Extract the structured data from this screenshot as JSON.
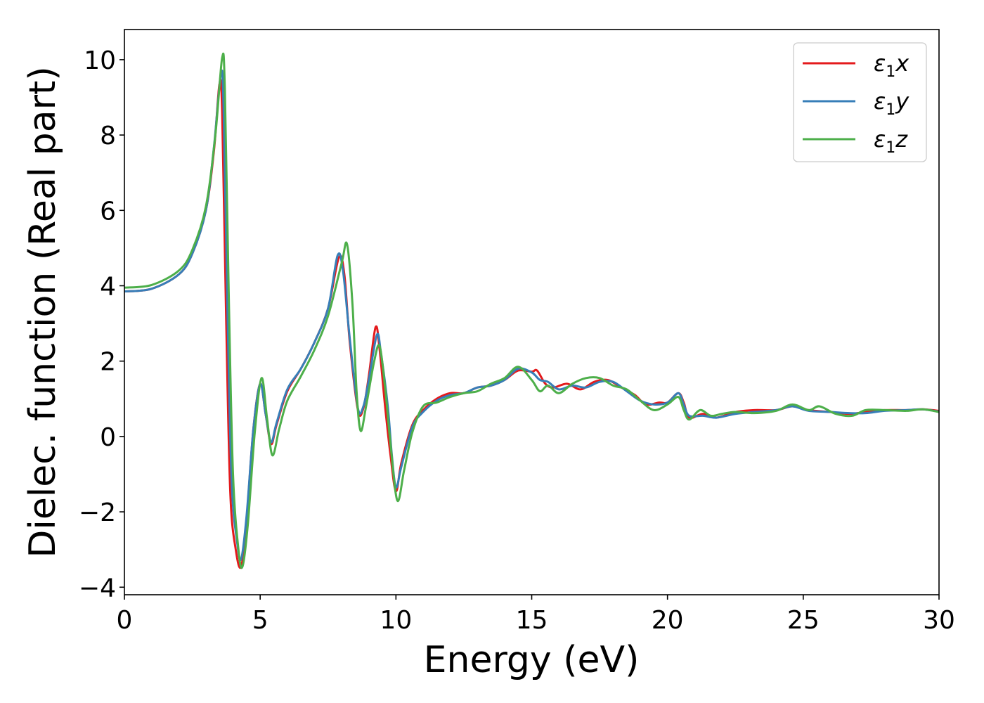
{
  "chart_data": {
    "type": "line",
    "title": "",
    "xlabel": "Energy (eV)",
    "ylabel": "Dielec. function (Real part)",
    "xlim": [
      0,
      30
    ],
    "ylim": [
      -4.2,
      10.8
    ],
    "xticks": [
      0,
      5,
      10,
      15,
      20,
      25,
      30
    ],
    "xtick_labels": [
      "0",
      "5",
      "10",
      "15",
      "20",
      "25",
      "30"
    ],
    "yticks": [
      -4,
      -2,
      0,
      2,
      4,
      6,
      8,
      10
    ],
    "ytick_labels": [
      "−4",
      "−2",
      "0",
      "2",
      "4",
      "6",
      "8",
      "10"
    ],
    "grid": false,
    "legend": {
      "position": "upper-right",
      "entries": [
        {
          "symbol": "ε",
          "sub": "1",
          "axis": "x"
        },
        {
          "symbol": "ε",
          "sub": "1",
          "axis": "y"
        },
        {
          "symbol": "ε",
          "sub": "1",
          "axis": "z"
        }
      ]
    },
    "series": [
      {
        "color": "#e41a1c",
        "points": [
          [
            0,
            3.85
          ],
          [
            1,
            3.92
          ],
          [
            2,
            4.3
          ],
          [
            2.5,
            4.85
          ],
          [
            3,
            6.0
          ],
          [
            3.3,
            7.6
          ],
          [
            3.5,
            9.35
          ],
          [
            3.6,
            8.6
          ],
          [
            3.75,
            3.0
          ],
          [
            3.9,
            -1.5
          ],
          [
            4.1,
            -3.0
          ],
          [
            4.3,
            -3.45
          ],
          [
            4.5,
            -2.2
          ],
          [
            4.75,
            0.2
          ],
          [
            5.0,
            1.4
          ],
          [
            5.2,
            0.6
          ],
          [
            5.4,
            -0.2
          ],
          [
            5.6,
            0.3
          ],
          [
            6.0,
            1.2
          ],
          [
            6.5,
            1.8
          ],
          [
            7.0,
            2.5
          ],
          [
            7.5,
            3.4
          ],
          [
            7.9,
            4.75
          ],
          [
            8.1,
            4.3
          ],
          [
            8.3,
            2.5
          ],
          [
            8.6,
            0.7
          ],
          [
            8.8,
            0.75
          ],
          [
            9.0,
            1.6
          ],
          [
            9.25,
            2.9
          ],
          [
            9.4,
            2.3
          ],
          [
            9.6,
            0.8
          ],
          [
            9.8,
            -0.5
          ],
          [
            10.0,
            -1.45
          ],
          [
            10.2,
            -0.7
          ],
          [
            10.6,
            0.3
          ],
          [
            11.0,
            0.7
          ],
          [
            11.5,
            1.0
          ],
          [
            12.0,
            1.15
          ],
          [
            12.5,
            1.15
          ],
          [
            13.0,
            1.3
          ],
          [
            13.5,
            1.35
          ],
          [
            14.0,
            1.5
          ],
          [
            14.5,
            1.75
          ],
          [
            15.0,
            1.72
          ],
          [
            15.2,
            1.75
          ],
          [
            15.5,
            1.4
          ],
          [
            15.8,
            1.3
          ],
          [
            16.3,
            1.4
          ],
          [
            16.8,
            1.25
          ],
          [
            17.3,
            1.45
          ],
          [
            17.8,
            1.5
          ],
          [
            18.3,
            1.3
          ],
          [
            18.8,
            1.1
          ],
          [
            19.2,
            0.85
          ],
          [
            19.7,
            0.9
          ],
          [
            20.0,
            0.9
          ],
          [
            20.4,
            1.15
          ],
          [
            20.6,
            0.9
          ],
          [
            20.8,
            0.5
          ],
          [
            21.3,
            0.6
          ],
          [
            21.8,
            0.5
          ],
          [
            22.5,
            0.65
          ],
          [
            23.2,
            0.7
          ],
          [
            24.0,
            0.7
          ],
          [
            24.6,
            0.8
          ],
          [
            25.2,
            0.7
          ],
          [
            26.0,
            0.65
          ],
          [
            26.7,
            0.6
          ],
          [
            27.3,
            0.65
          ],
          [
            28.0,
            0.7
          ],
          [
            28.8,
            0.7
          ],
          [
            29.4,
            0.72
          ],
          [
            30.0,
            0.68
          ]
        ]
      },
      {
        "color": "#377eb8",
        "points": [
          [
            0,
            3.85
          ],
          [
            1,
            3.92
          ],
          [
            2,
            4.3
          ],
          [
            2.5,
            4.85
          ],
          [
            3,
            6.0
          ],
          [
            3.3,
            7.7
          ],
          [
            3.55,
            9.6
          ],
          [
            3.65,
            8.8
          ],
          [
            3.8,
            3.2
          ],
          [
            3.95,
            -1.2
          ],
          [
            4.15,
            -2.8
          ],
          [
            4.3,
            -3.25
          ],
          [
            4.5,
            -2.1
          ],
          [
            4.75,
            0.2
          ],
          [
            5.0,
            1.4
          ],
          [
            5.2,
            0.6
          ],
          [
            5.4,
            -0.15
          ],
          [
            5.6,
            0.35
          ],
          [
            6.0,
            1.25
          ],
          [
            6.5,
            1.8
          ],
          [
            7.0,
            2.5
          ],
          [
            7.5,
            3.4
          ],
          [
            7.85,
            4.8
          ],
          [
            8.05,
            4.4
          ],
          [
            8.3,
            2.6
          ],
          [
            8.6,
            0.75
          ],
          [
            8.8,
            0.8
          ],
          [
            9.0,
            1.5
          ],
          [
            9.3,
            2.7
          ],
          [
            9.45,
            2.2
          ],
          [
            9.7,
            0.8
          ],
          [
            9.85,
            -0.5
          ],
          [
            10.0,
            -1.35
          ],
          [
            10.2,
            -0.8
          ],
          [
            10.6,
            0.25
          ],
          [
            11.0,
            0.65
          ],
          [
            11.5,
            0.95
          ],
          [
            12.0,
            1.1
          ],
          [
            12.5,
            1.15
          ],
          [
            13.0,
            1.3
          ],
          [
            13.5,
            1.35
          ],
          [
            14.0,
            1.5
          ],
          [
            14.5,
            1.8
          ],
          [
            15.0,
            1.7
          ],
          [
            15.3,
            1.5
          ],
          [
            15.6,
            1.45
          ],
          [
            16.0,
            1.25
          ],
          [
            16.5,
            1.35
          ],
          [
            17.0,
            1.3
          ],
          [
            17.5,
            1.45
          ],
          [
            18.0,
            1.45
          ],
          [
            18.5,
            1.2
          ],
          [
            19.0,
            0.95
          ],
          [
            19.5,
            0.85
          ],
          [
            20.0,
            0.9
          ],
          [
            20.4,
            1.15
          ],
          [
            20.6,
            0.85
          ],
          [
            20.8,
            0.55
          ],
          [
            21.3,
            0.55
          ],
          [
            21.8,
            0.5
          ],
          [
            22.5,
            0.6
          ],
          [
            23.2,
            0.65
          ],
          [
            24.0,
            0.7
          ],
          [
            24.6,
            0.8
          ],
          [
            25.2,
            0.68
          ],
          [
            26.0,
            0.65
          ],
          [
            26.7,
            0.62
          ],
          [
            27.3,
            0.62
          ],
          [
            28.0,
            0.68
          ],
          [
            28.8,
            0.7
          ],
          [
            29.4,
            0.72
          ],
          [
            30.0,
            0.66
          ]
        ]
      },
      {
        "color": "#4daf4a",
        "points": [
          [
            0,
            3.95
          ],
          [
            1,
            4.02
          ],
          [
            2,
            4.4
          ],
          [
            2.5,
            4.95
          ],
          [
            3,
            6.1
          ],
          [
            3.35,
            8.0
          ],
          [
            3.6,
            10.05
          ],
          [
            3.7,
            9.2
          ],
          [
            3.85,
            3.5
          ],
          [
            4.0,
            -1.0
          ],
          [
            4.2,
            -3.0
          ],
          [
            4.35,
            -3.45
          ],
          [
            4.55,
            -2.3
          ],
          [
            4.8,
            0.1
          ],
          [
            5.05,
            1.55
          ],
          [
            5.25,
            0.5
          ],
          [
            5.45,
            -0.5
          ],
          [
            5.7,
            0.2
          ],
          [
            6.0,
            0.95
          ],
          [
            6.5,
            1.6
          ],
          [
            7.0,
            2.3
          ],
          [
            7.5,
            3.2
          ],
          [
            8.0,
            4.6
          ],
          [
            8.2,
            5.1
          ],
          [
            8.4,
            3.5
          ],
          [
            8.55,
            1.2
          ],
          [
            8.7,
            0.15
          ],
          [
            8.9,
            0.8
          ],
          [
            9.2,
            2.0
          ],
          [
            9.4,
            2.4
          ],
          [
            9.6,
            1.3
          ],
          [
            9.8,
            -0.2
          ],
          [
            10.05,
            -1.7
          ],
          [
            10.3,
            -0.9
          ],
          [
            10.6,
            0.1
          ],
          [
            11.0,
            0.8
          ],
          [
            11.5,
            0.9
          ],
          [
            12.0,
            1.05
          ],
          [
            12.5,
            1.15
          ],
          [
            13.0,
            1.2
          ],
          [
            13.5,
            1.4
          ],
          [
            14.0,
            1.55
          ],
          [
            14.5,
            1.85
          ],
          [
            15.0,
            1.5
          ],
          [
            15.3,
            1.2
          ],
          [
            15.6,
            1.35
          ],
          [
            16.0,
            1.15
          ],
          [
            16.5,
            1.4
          ],
          [
            17.0,
            1.55
          ],
          [
            17.5,
            1.55
          ],
          [
            18.0,
            1.35
          ],
          [
            18.5,
            1.25
          ],
          [
            19.0,
            0.95
          ],
          [
            19.5,
            0.7
          ],
          [
            20.0,
            0.85
          ],
          [
            20.4,
            1.05
          ],
          [
            20.6,
            0.7
          ],
          [
            20.8,
            0.45
          ],
          [
            21.2,
            0.7
          ],
          [
            21.6,
            0.55
          ],
          [
            22.0,
            0.6
          ],
          [
            22.5,
            0.65
          ],
          [
            23.2,
            0.62
          ],
          [
            24.0,
            0.68
          ],
          [
            24.6,
            0.85
          ],
          [
            25.2,
            0.7
          ],
          [
            25.6,
            0.8
          ],
          [
            26.2,
            0.6
          ],
          [
            26.8,
            0.55
          ],
          [
            27.3,
            0.7
          ],
          [
            28.0,
            0.7
          ],
          [
            28.8,
            0.68
          ],
          [
            29.4,
            0.72
          ],
          [
            30.0,
            0.65
          ]
        ]
      }
    ]
  }
}
